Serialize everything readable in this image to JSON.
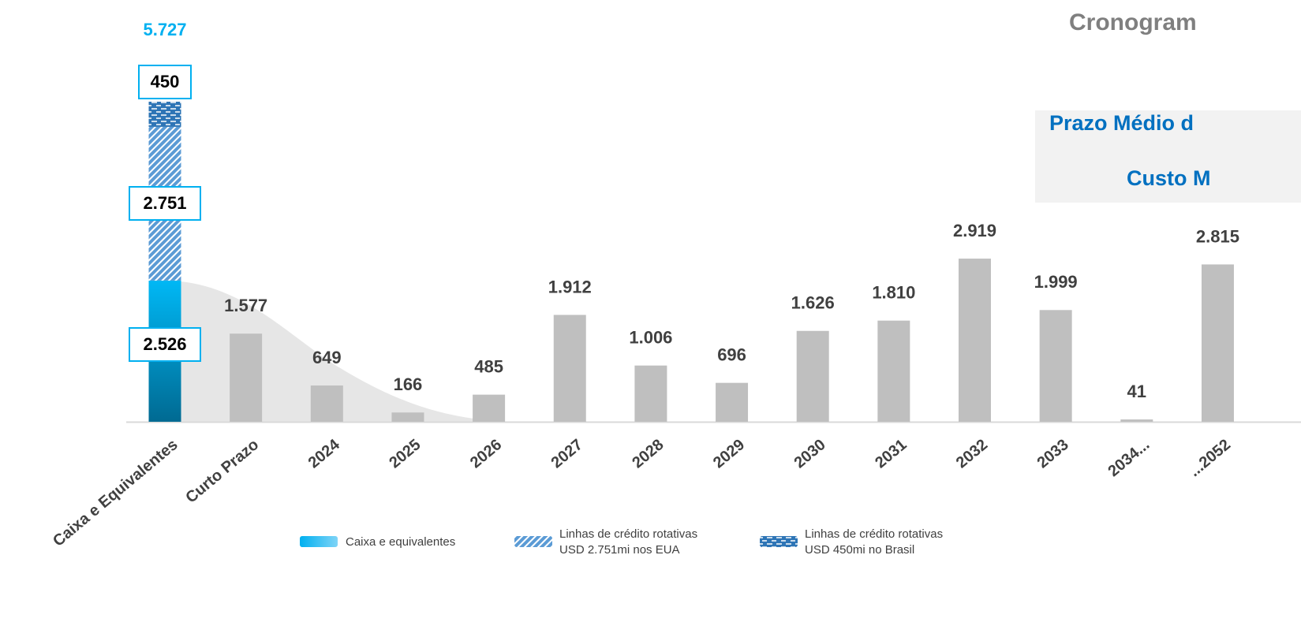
{
  "chart_data": {
    "type": "bar",
    "title": "Cronogram",
    "panel": [
      "Prazo Médio d",
      "Custo M"
    ],
    "categories": [
      "Caixa e Equivalentes",
      "Curto Prazo",
      "2024",
      "2025",
      "2026",
      "2027",
      "2028",
      "2029",
      "2030",
      "2031",
      "2032",
      "2033",
      "2034...",
      "...2052"
    ],
    "color": "#bfbfbf",
    "values": [
      null,
      1577,
      649,
      166,
      485,
      1912,
      1006,
      696,
      1626,
      1810,
      2919,
      1999,
      41,
      2815
    ],
    "value_labels": [
      null,
      "1.577",
      "649",
      "166",
      "485",
      "1.912",
      "1.006",
      "696",
      "1.626",
      "1.810",
      "2.919",
      "1.999",
      "41",
      "2.815"
    ],
    "stack": [
      {
        "name": "Caixa e equivalentes",
        "color": "#00b0f0",
        "value": 2526,
        "value_label": "2.526"
      },
      {
        "name": "Linhas de crédito rotativas",
        "detail": "USD 2.751mi nos EUA",
        "color": "#5b9bd5",
        "value": 2751,
        "value_label": "2.751"
      },
      {
        "name": "Linhas de crédito rotativas",
        "detail": "USD 450mi no Brasil",
        "color": "#2e75b6",
        "value": 450,
        "value_label": "450"
      }
    ],
    "total": 5727,
    "total_label": "5.727"
  }
}
